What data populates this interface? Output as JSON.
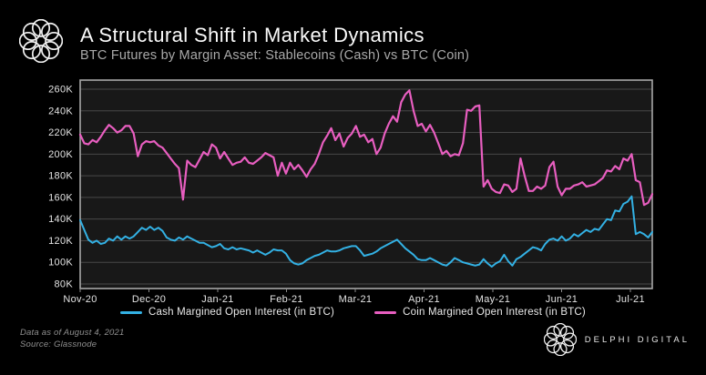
{
  "header": {
    "title": "A Structural Shift in Market Dynamics",
    "subtitle": "BTC Futures by Margin Asset: Stablecoins (Cash) vs BTC (Coin)"
  },
  "footer": {
    "data_as_of": "Data as of August 4, 2021",
    "source": "Source:  Glassnode",
    "brand": "DELPHI DIGITAL"
  },
  "colors": {
    "background": "#000000",
    "plot_background": "#181818",
    "grid": "#474747",
    "plot_border": "#a8a8a8",
    "tick_text": "#e4e4e4",
    "cash_line": "#33b1e4",
    "coin_line": "#e85ec0"
  },
  "chart_data": {
    "type": "line",
    "title": "BTC Futures Open Interest by Margin Asset",
    "grid": "horizontal",
    "legend_position": "bottom",
    "x_axis": {
      "start": "2020-11-01",
      "end": "2021-08-04",
      "tick_labels": [
        "Nov-20",
        "Dec-20",
        "Jan-21",
        "Feb-21",
        "Mar-21",
        "Apr-21",
        "May-21",
        "Jun-21",
        "Jul-21"
      ]
    },
    "y_axis": {
      "unit": "BTC",
      "min_thousands": 80,
      "max_thousands": 260,
      "tick_labels": [
        "260K",
        "240K",
        "220K",
        "200K",
        "180K",
        "160K",
        "140K",
        "120K",
        "100K",
        "80K"
      ],
      "tick_values_thousands": [
        260,
        240,
        220,
        200,
        180,
        160,
        140,
        120,
        100,
        80
      ]
    },
    "series": [
      {
        "name": "Cash Margined Open Interest (in BTC)",
        "color": "#33b1e4",
        "values_thousands": [
          139,
          130,
          121,
          118,
          120,
          117,
          118,
          122,
          120,
          124,
          121,
          124,
          122,
          124,
          128,
          132,
          130,
          133,
          130,
          132,
          129,
          123,
          121,
          120,
          123,
          121,
          124,
          122,
          120,
          118,
          118,
          116,
          114,
          115,
          117,
          113,
          112,
          114,
          112,
          113,
          112,
          111,
          109,
          111,
          109,
          107,
          109,
          112,
          111,
          111,
          108,
          102,
          99,
          98,
          99,
          102,
          104,
          106,
          107,
          109,
          111,
          110,
          110,
          111,
          113,
          114,
          115,
          115,
          111,
          106,
          107,
          108,
          110,
          113,
          115,
          117,
          119,
          121,
          117,
          113,
          110,
          107,
          103,
          102,
          102,
          104,
          102,
          100,
          98,
          97,
          100,
          104,
          102,
          100,
          99,
          98,
          97,
          98,
          103,
          99,
          96,
          99,
          101,
          107,
          101,
          97,
          103,
          105,
          108,
          111,
          114,
          113,
          111,
          117,
          121,
          122,
          120,
          124,
          120,
          122,
          126,
          124,
          127,
          130,
          128,
          131,
          130,
          135,
          140,
          139,
          148,
          147,
          154,
          156,
          161,
          126,
          128,
          126,
          123,
          128
        ]
      },
      {
        "name": "Coin Margined Open Interest (in BTC)",
        "color": "#e85ec0",
        "values_thousands": [
          218,
          210,
          209,
          213,
          211,
          216,
          222,
          227,
          224,
          220,
          222,
          226,
          226,
          219,
          198,
          209,
          212,
          211,
          212,
          208,
          206,
          201,
          196,
          191,
          187,
          158,
          194,
          190,
          188,
          195,
          202,
          199,
          209,
          206,
          196,
          202,
          196,
          190,
          192,
          193,
          197,
          192,
          191,
          194,
          197,
          201,
          199,
          197,
          180,
          192,
          182,
          192,
          186,
          190,
          185,
          179,
          186,
          191,
          200,
          211,
          217,
          224,
          213,
          219,
          207,
          215,
          219,
          226,
          216,
          218,
          211,
          214,
          200,
          206,
          219,
          228,
          235,
          230,
          248,
          255,
          259,
          240,
          226,
          228,
          221,
          227,
          220,
          210,
          200,
          203,
          198,
          200,
          199,
          210,
          241,
          240,
          244,
          245,
          170,
          176,
          168,
          165,
          164,
          172,
          171,
          165,
          168,
          196,
          180,
          166,
          166,
          170,
          168,
          171,
          188,
          193,
          170,
          162,
          168,
          168,
          171,
          172,
          174,
          170,
          171,
          172,
          175,
          178,
          185,
          184,
          189,
          186,
          196,
          194,
          200,
          176,
          174,
          153,
          155,
          163
        ]
      }
    ]
  }
}
